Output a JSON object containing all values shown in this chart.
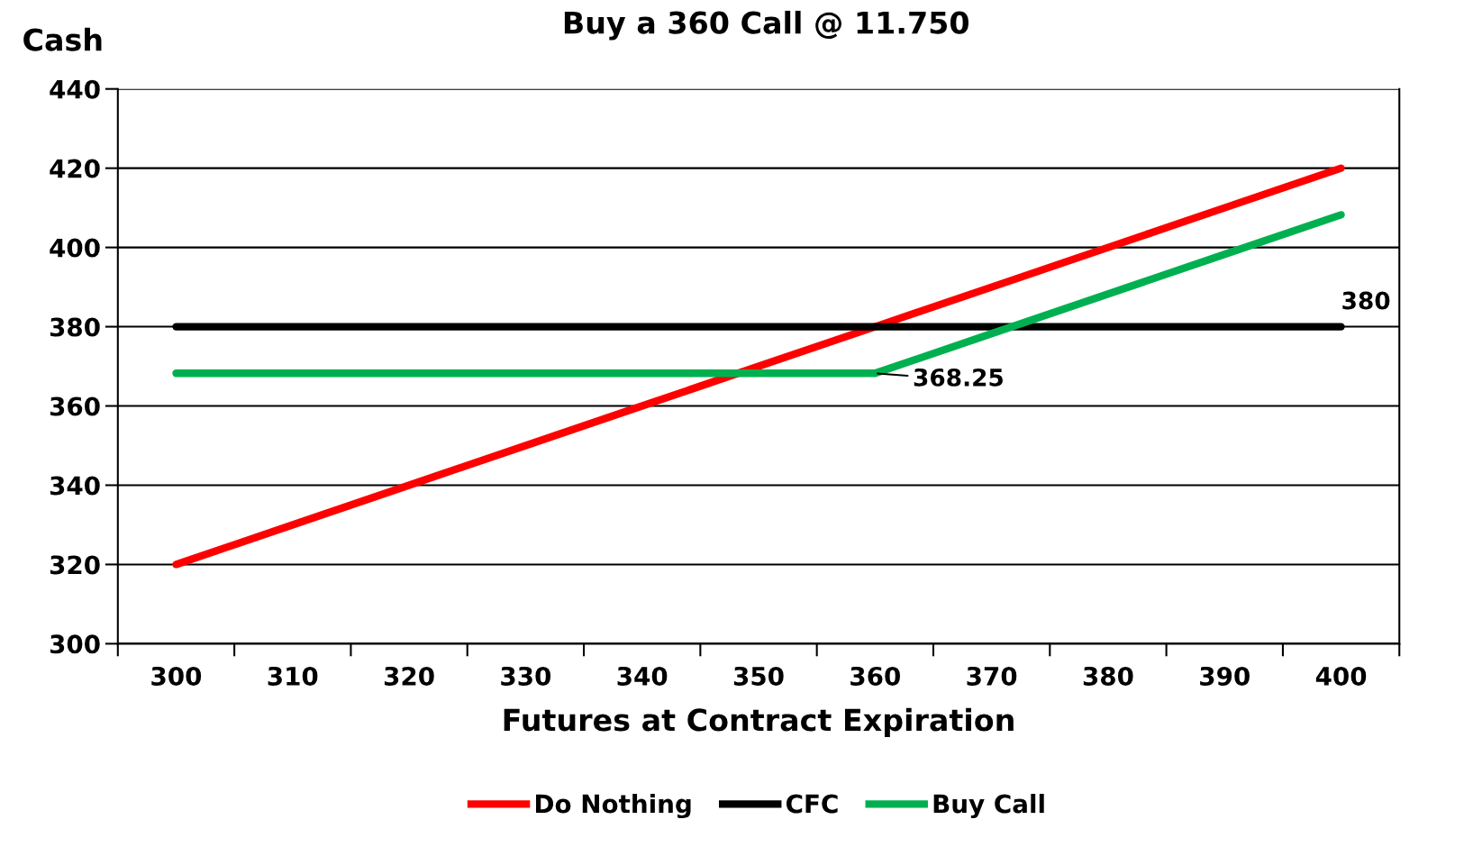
{
  "chart_data": {
    "type": "line",
    "title": "Buy a 360 Call @ 11.750",
    "xlabel": "Futures at Contract Expiration",
    "ylabel": "Cash",
    "categories": [
      "300",
      "310",
      "320",
      "330",
      "340",
      "350",
      "360",
      "370",
      "380",
      "390",
      "400"
    ],
    "series": [
      {
        "name": "Do Nothing",
        "color": "#ff0000",
        "values": [
          320,
          330,
          340,
          350,
          360,
          370,
          380,
          390,
          400,
          410,
          420
        ]
      },
      {
        "name": "CFC",
        "color": "#000000",
        "values": [
          380,
          380,
          380,
          380,
          380,
          380,
          380,
          380,
          380,
          380,
          380
        ]
      },
      {
        "name": "Buy Call",
        "color": "#00b050",
        "values": [
          368.25,
          368.25,
          368.25,
          368.25,
          368.25,
          368.25,
          368.25,
          378.25,
          388.25,
          398.25,
          408.25
        ]
      }
    ],
    "ylim": [
      300,
      440
    ],
    "yticks": [
      300,
      320,
      340,
      360,
      380,
      400,
      420,
      440
    ],
    "grid": "y",
    "legend": "bottom",
    "marker": "none",
    "line_style": "solid",
    "annotations": [
      {
        "text": "380",
        "x": "400",
        "y": 380
      },
      {
        "text": "368.25",
        "x": "360",
        "y": 368.25
      }
    ]
  }
}
